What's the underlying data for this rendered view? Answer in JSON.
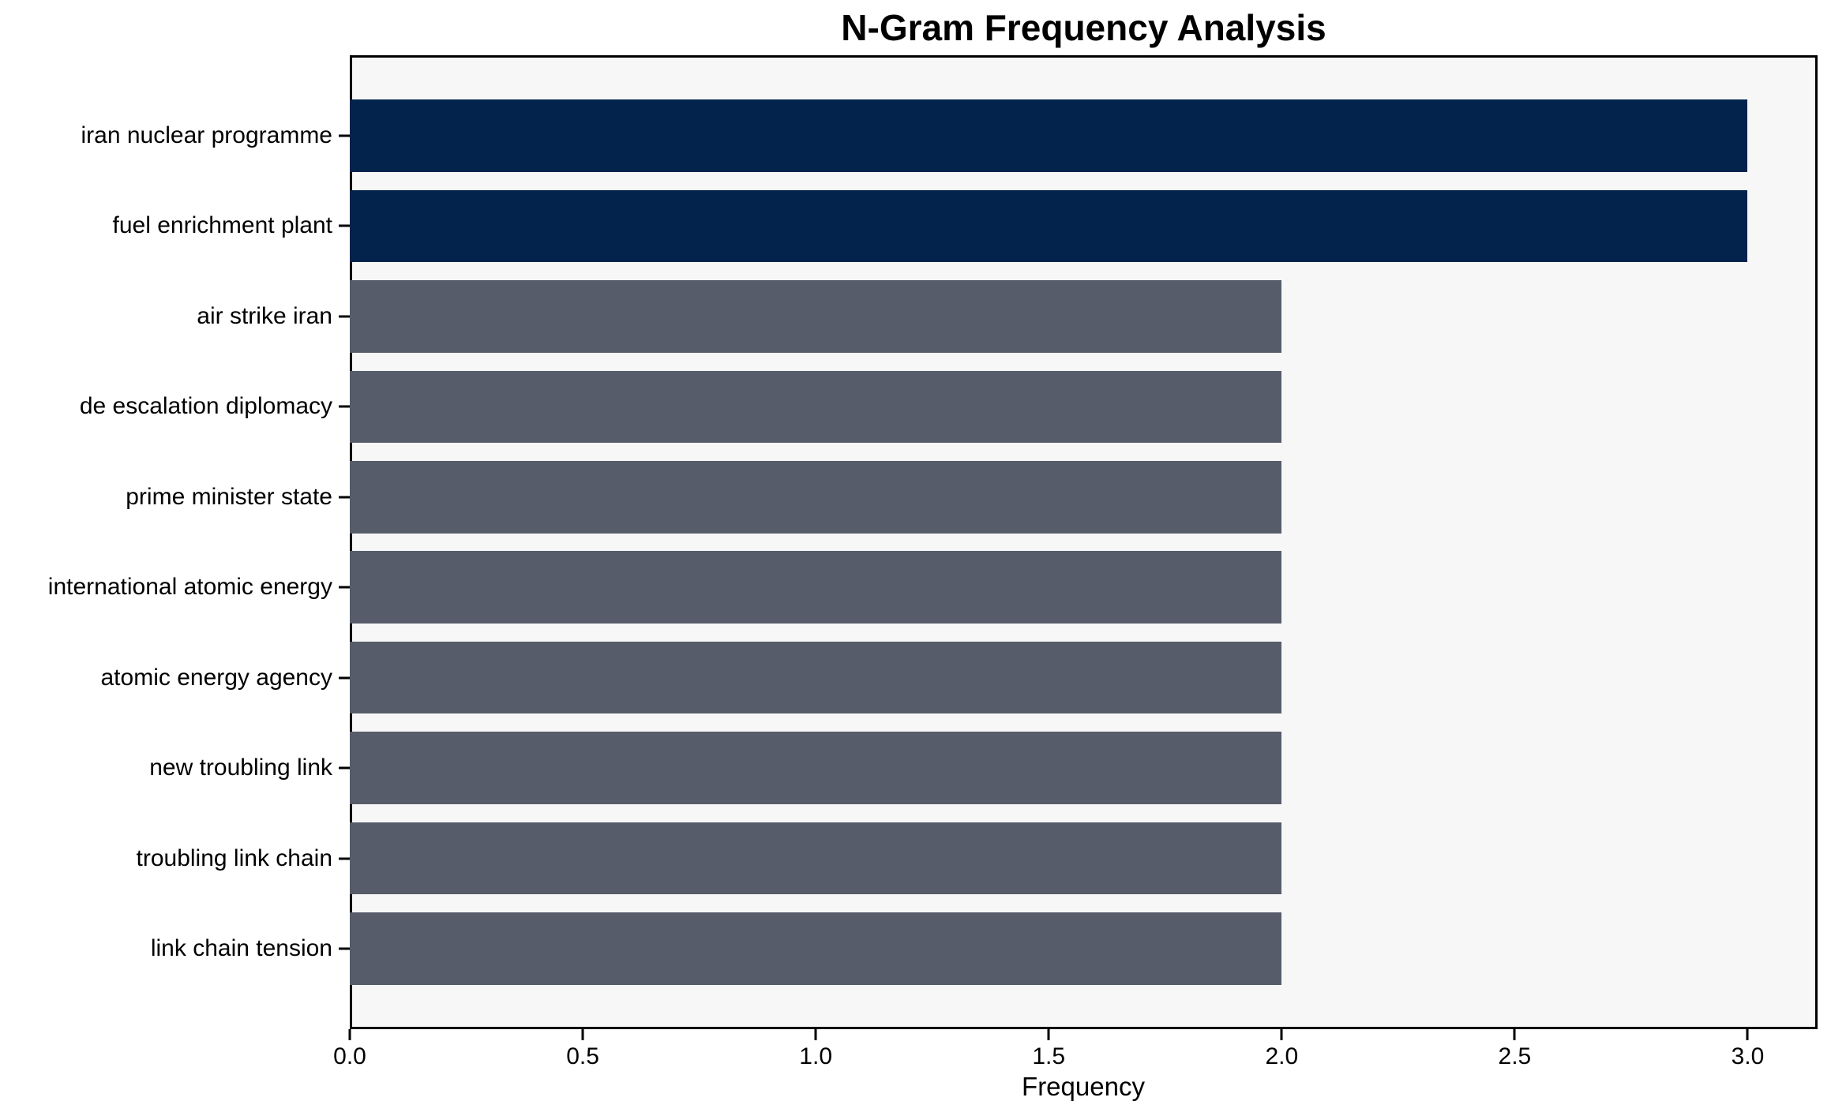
{
  "chart_data": {
    "type": "bar",
    "orientation": "horizontal",
    "title": "N-Gram Frequency Analysis",
    "xlabel": "Frequency",
    "ylabel": "",
    "categories": [
      "iran nuclear programme",
      "fuel enrichment plant",
      "air strike iran",
      "de escalation diplomacy",
      "prime minister state",
      "international atomic energy",
      "atomic energy agency",
      "new troubling link",
      "troubling link chain",
      "link chain tension"
    ],
    "values": [
      3,
      3,
      2,
      2,
      2,
      2,
      2,
      2,
      2,
      2
    ],
    "bar_colors": [
      "#03234d",
      "#03234d",
      "#575c6a",
      "#575c6a",
      "#575c6a",
      "#575c6a",
      "#575c6a",
      "#575c6a",
      "#575c6a",
      "#575c6a"
    ],
    "xlim": [
      0,
      3.15
    ],
    "xticks": [
      "0.0",
      "0.5",
      "1.0",
      "1.5",
      "2.0",
      "2.5",
      "3.0"
    ],
    "xtick_values": [
      0,
      0.5,
      1,
      1.5,
      2,
      2.5,
      3
    ],
    "grid": false,
    "legend": null,
    "colors": {
      "bar_highlight": "#03234d",
      "bar_default": "#575c6a",
      "plot_background": "#f7f7f8",
      "figure_background": "#ffffff",
      "axis": "#000000",
      "text": "#000000"
    }
  }
}
